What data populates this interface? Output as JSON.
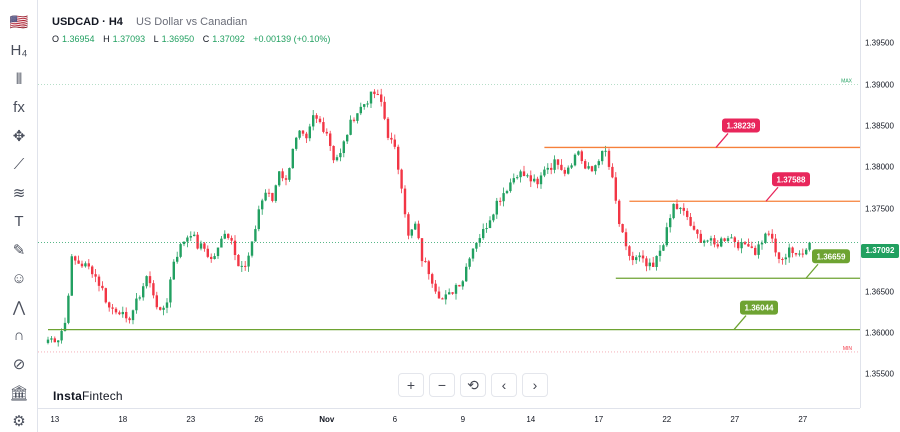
{
  "header": {
    "symbol": "USDCAD · H4",
    "description": "US Dollar vs Canadian",
    "ohlc": {
      "o_label": "O",
      "o_value": "1.36954",
      "h_label": "H",
      "h_value": "1.37093",
      "l_label": "L",
      "l_value": "1.36950",
      "c_label": "C",
      "c_value": "1.37092",
      "change": "+0.00139 (+0.10%)"
    }
  },
  "current_price": "1.37092",
  "branding": {
    "name_bold": "Insta",
    "name_light": "Fintech"
  },
  "nav": {
    "zoom_in": "+",
    "zoom_out": "−",
    "reset": "⟲",
    "prev": "‹",
    "next": "›"
  },
  "toolbar": [
    {
      "name": "us-flag-icon",
      "glyph": "🇺🇸"
    },
    {
      "name": "timeframe-icon",
      "glyph": "H₄"
    },
    {
      "name": "candles-icon",
      "glyph": "⫴"
    },
    {
      "name": "indicators-icon",
      "glyph": "fx"
    },
    {
      "name": "crosshair-icon",
      "glyph": "✥"
    },
    {
      "name": "trendline-icon",
      "glyph": "⟋"
    },
    {
      "name": "fib-icon",
      "glyph": "≋"
    },
    {
      "name": "text-icon",
      "glyph": "T"
    },
    {
      "name": "brush-icon",
      "glyph": "✎"
    },
    {
      "name": "smiley-icon",
      "glyph": "☺"
    },
    {
      "name": "pattern-icon",
      "glyph": "⋀"
    },
    {
      "name": "magnet-icon",
      "glyph": "∩"
    },
    {
      "name": "eye-icon",
      "glyph": "⊘"
    },
    {
      "name": "bank-icon",
      "glyph": "🏛"
    },
    {
      "name": "settings-icon",
      "glyph": "⚙"
    }
  ],
  "colors": {
    "up": "#22a061",
    "down": "#f23645",
    "resistance": "#f6803a",
    "support": "#6ea332",
    "red_label": "#e8265b",
    "green_label": "#6ea332"
  },
  "chart_data": {
    "type": "candlestick",
    "symbol": "USDCAD",
    "timeframe": "H4",
    "ylim": [
      1.3525,
      1.399
    ],
    "y_ticks": [
      "1.39500",
      "1.39000",
      "1.38500",
      "1.38000",
      "1.37500",
      "1.37000",
      "1.36500",
      "1.36000",
      "1.35500"
    ],
    "x_ticks": [
      {
        "label": "13",
        "index": 2
      },
      {
        "label": "18",
        "index": 22
      },
      {
        "label": "23",
        "index": 42
      },
      {
        "label": "26",
        "index": 62
      },
      {
        "label": "Nov",
        "index": 82,
        "bold": true
      },
      {
        "label": "6",
        "index": 102
      },
      {
        "label": "9",
        "index": 122
      },
      {
        "label": "14",
        "index": 142
      },
      {
        "label": "17",
        "index": 162
      },
      {
        "label": "22",
        "index": 182
      },
      {
        "label": "27",
        "index": 202
      },
      {
        "label": "27",
        "index": 222
      }
    ],
    "num_slots": 234,
    "levels": [
      {
        "label": "1.38239",
        "price": 1.3824,
        "kind": "resistance",
        "start_index": 146
      },
      {
        "label": "1.37588",
        "price": 1.3759,
        "kind": "resistance",
        "start_index": 171
      },
      {
        "label": "1.36659",
        "price": 1.3666,
        "kind": "support",
        "start_index": 167
      },
      {
        "label": "1.36044",
        "price": 1.3604,
        "kind": "support",
        "start_index": 0
      }
    ],
    "max_label": "MAX",
    "min_label": "MIN",
    "max_price": 1.39,
    "min_price": 1.3577,
    "waypoints": [
      [
        0,
        1.3592
      ],
      [
        3,
        1.3594
      ],
      [
        5,
        1.3612
      ],
      [
        7,
        1.3688
      ],
      [
        10,
        1.3683
      ],
      [
        13,
        1.3676
      ],
      [
        16,
        1.3652
      ],
      [
        18,
        1.363
      ],
      [
        21,
        1.3628
      ],
      [
        23,
        1.3612
      ],
      [
        26,
        1.3636
      ],
      [
        29,
        1.3668
      ],
      [
        31,
        1.3648
      ],
      [
        33,
        1.3622
      ],
      [
        35,
        1.364
      ],
      [
        37,
        1.3688
      ],
      [
        40,
        1.3712
      ],
      [
        42,
        1.3722
      ],
      [
        44,
        1.3705
      ],
      [
        46,
        1.3702
      ],
      [
        48,
        1.3688
      ],
      [
        50,
        1.37
      ],
      [
        52,
        1.3724
      ],
      [
        54,
        1.3712
      ],
      [
        56,
        1.3686
      ],
      [
        58,
        1.3678
      ],
      [
        60,
        1.3705
      ],
      [
        62,
        1.375
      ],
      [
        64,
        1.377
      ],
      [
        66,
        1.376
      ],
      [
        68,
        1.3798
      ],
      [
        70,
        1.3782
      ],
      [
        72,
        1.3825
      ],
      [
        74,
        1.384
      ],
      [
        76,
        1.383
      ],
      [
        78,
        1.386
      ],
      [
        80,
        1.3854
      ],
      [
        82,
        1.3843
      ],
      [
        84,
        1.3812
      ],
      [
        86,
        1.3815
      ],
      [
        88,
        1.3842
      ],
      [
        90,
        1.3862
      ],
      [
        92,
        1.3872
      ],
      [
        94,
        1.3882
      ],
      [
        96,
        1.3889
      ],
      [
        98,
        1.3878
      ],
      [
        100,
        1.384
      ],
      [
        102,
        1.382
      ],
      [
        104,
        1.378
      ],
      [
        106,
        1.3715
      ],
      [
        108,
        1.373
      ],
      [
        110,
        1.369
      ],
      [
        112,
        1.3675
      ],
      [
        114,
        1.3655
      ],
      [
        116,
        1.364
      ],
      [
        118,
        1.3645
      ],
      [
        120,
        1.3658
      ],
      [
        122,
        1.3665
      ],
      [
        124,
        1.3695
      ],
      [
        126,
        1.3712
      ],
      [
        128,
        1.3722
      ],
      [
        130,
        1.374
      ],
      [
        132,
        1.3758
      ],
      [
        134,
        1.377
      ],
      [
        136,
        1.3782
      ],
      [
        138,
        1.3794
      ],
      [
        140,
        1.379
      ],
      [
        142,
        1.3785
      ],
      [
        144,
        1.3777
      ],
      [
        146,
        1.38
      ],
      [
        148,
        1.3802
      ],
      [
        150,
        1.3808
      ],
      [
        152,
        1.3796
      ],
      [
        154,
        1.3808
      ],
      [
        156,
        1.382
      ],
      [
        158,
        1.3798
      ],
      [
        160,
        1.3795
      ],
      [
        162,
        1.3812
      ],
      [
        164,
        1.3818
      ],
      [
        166,
        1.3783
      ],
      [
        168,
        1.3732
      ],
      [
        170,
        1.37
      ],
      [
        172,
        1.3688
      ],
      [
        174,
        1.369
      ],
      [
        176,
        1.368
      ],
      [
        178,
        1.3678
      ],
      [
        180,
        1.37
      ],
      [
        182,
        1.3722
      ],
      [
        184,
        1.3754
      ],
      [
        186,
        1.3748
      ],
      [
        188,
        1.374
      ],
      [
        190,
        1.372
      ],
      [
        192,
        1.3714
      ],
      [
        194,
        1.3712
      ],
      [
        196,
        1.3705
      ],
      [
        198,
        1.3712
      ],
      [
        200,
        1.3718
      ],
      [
        202,
        1.3712
      ],
      [
        204,
        1.3704
      ],
      [
        206,
        1.371
      ],
      [
        208,
        1.3698
      ],
      [
        210,
        1.3712
      ],
      [
        212,
        1.3722
      ],
      [
        214,
        1.3696
      ],
      [
        216,
        1.3685
      ],
      [
        218,
        1.3705
      ],
      [
        220,
        1.369
      ],
      [
        222,
        1.37
      ],
      [
        224,
        1.3709
      ]
    ]
  }
}
